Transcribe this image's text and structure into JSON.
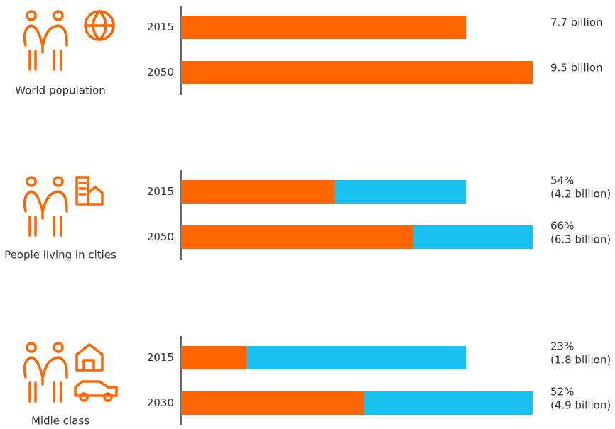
{
  "chart_data": [
    {
      "type": "bar",
      "label": "World population",
      "categories": [
        "2015",
        "2050"
      ],
      "values": [
        7.7,
        9.5
      ],
      "value_labels": [
        "7.7 billion",
        "9.5 billion"
      ],
      "color": "#ff6600",
      "xlim": [
        0,
        9.5
      ]
    },
    {
      "type": "share-bar",
      "label": "People living in cities",
      "categories": [
        "2015",
        "2050"
      ],
      "values": [
        7.7,
        9.5
      ],
      "share": [
        54,
        66
      ],
      "share_labels": [
        "54%",
        "66%"
      ],
      "counts": [
        4.2,
        6.3
      ],
      "count_labels": [
        "(4.2 billion)",
        "(6.3 billion)"
      ],
      "colors": [
        "#ff6600",
        "#1ac0f0"
      ],
      "xlim": [
        0,
        9.5
      ]
    },
    {
      "type": "share-bar",
      "label": "Midle class",
      "categories": [
        "2015",
        "2030"
      ],
      "values": [
        7.7,
        9.5
      ],
      "share": [
        23,
        52
      ],
      "share_labels": [
        "23%",
        "52%"
      ],
      "counts": [
        1.8,
        4.9
      ],
      "count_labels": [
        "(1.8 billion)",
        "(4.9 billion)"
      ],
      "colors": [
        "#ff6600",
        "#1ac0f0"
      ],
      "xlim": [
        0,
        9.5
      ]
    }
  ]
}
